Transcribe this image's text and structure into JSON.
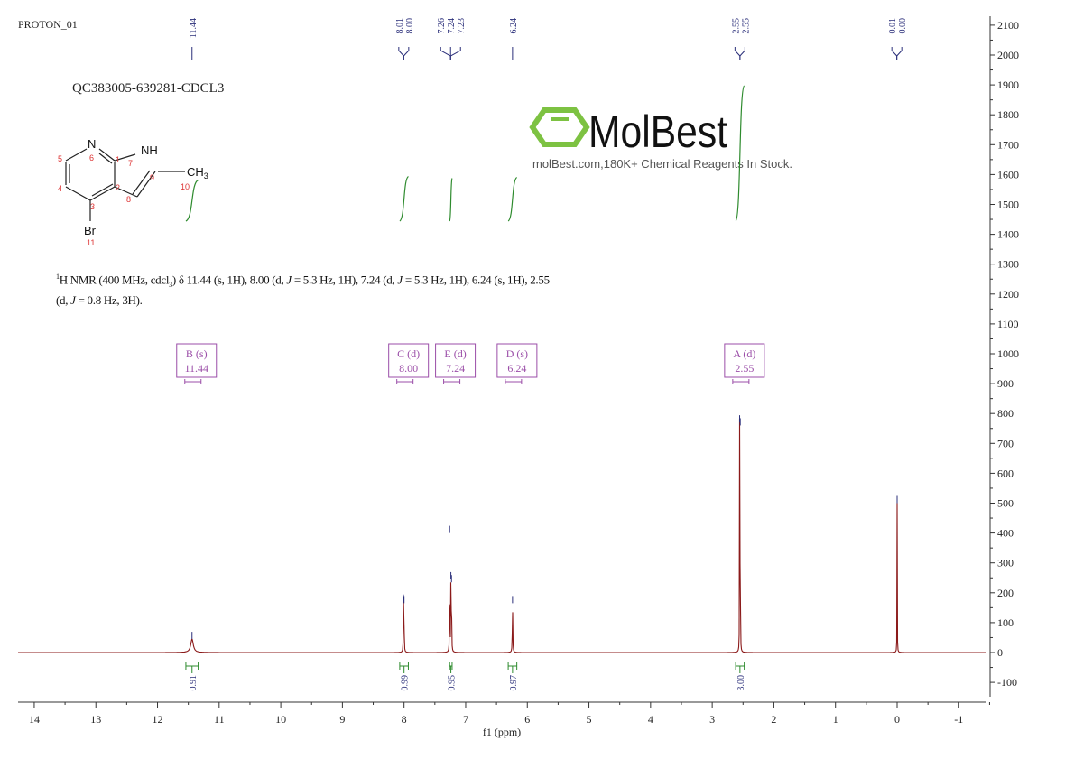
{
  "chart_data": {
    "type": "line",
    "title": "PROTON_01",
    "sample_name": "QC383005-639281-CDCL3",
    "xlabel": "f1 (ppm)",
    "ylabel": "",
    "xlim": [
      14.26,
      -1.43
    ],
    "ylim": [
      -170,
      2120
    ],
    "x_ticks": [
      14,
      13,
      12,
      11,
      10,
      9,
      8,
      7,
      6,
      5,
      4,
      3,
      2,
      1,
      0,
      -1
    ],
    "y_ticks": [
      2100,
      2000,
      1900,
      1800,
      1700,
      1600,
      1500,
      1400,
      1300,
      1200,
      1100,
      1000,
      900,
      800,
      700,
      600,
      500,
      400,
      300,
      200,
      100,
      0,
      -100
    ],
    "grid": false,
    "spectrum_color": "#8b1a1a",
    "peak_label_color": "#2b2f7a",
    "integral_color": "#2e8b2e",
    "multiplet_color": "#9b4ea8",
    "peaks": [
      {
        "ppm": 11.44,
        "height": 45,
        "width": 0.05
      },
      {
        "ppm": 8.01,
        "height": 170,
        "width": 0.006
      },
      {
        "ppm": 8.0,
        "height": 165,
        "width": 0.006
      },
      {
        "ppm": 7.26,
        "height": 400,
        "width": 0.005
      },
      {
        "ppm": 7.24,
        "height": 245,
        "width": 0.006
      },
      {
        "ppm": 7.23,
        "height": 235,
        "width": 0.006
      },
      {
        "ppm": 6.24,
        "height": 165,
        "width": 0.008
      },
      {
        "ppm": 2.555,
        "height": 770,
        "width": 0.004
      },
      {
        "ppm": 2.545,
        "height": 760,
        "width": 0.004
      },
      {
        "ppm": 0.0,
        "height": 500,
        "width": 0.004
      }
    ],
    "peak_label_groups": [
      {
        "ppm": 11.44,
        "labels": [
          "11.44"
        ]
      },
      {
        "ppm": 8.005,
        "labels": [
          "8.01",
          "8.00"
        ]
      },
      {
        "ppm": 7.245,
        "labels": [
          "7.26",
          "7.24",
          "7.23"
        ]
      },
      {
        "ppm": 6.24,
        "labels": [
          "6.24"
        ]
      },
      {
        "ppm": 2.55,
        "labels": [
          "2.55",
          "2.55"
        ]
      },
      {
        "ppm": 0.005,
        "labels": [
          "0.01",
          "0.00"
        ]
      }
    ],
    "multiplets": [
      {
        "label": "B (s)",
        "shift": "11.44",
        "ppm": 11.44
      },
      {
        "label": "C (d)",
        "shift": "8.00",
        "ppm": 8.0
      },
      {
        "label": "E (d)",
        "shift": "7.24",
        "ppm": 7.24
      },
      {
        "label": "D (s)",
        "shift": "6.24",
        "ppm": 6.24
      },
      {
        "label": "A (d)",
        "shift": "2.55",
        "ppm": 2.55
      }
    ],
    "integrals": [
      {
        "ppm": 11.44,
        "from": 11.54,
        "to": 11.34,
        "value": "0.91"
      },
      {
        "ppm": 8.0,
        "from": 8.07,
        "to": 7.93,
        "value": "0.99"
      },
      {
        "ppm": 7.24,
        "from": 7.26,
        "to": 7.22,
        "value": "0.95"
      },
      {
        "ppm": 6.24,
        "from": 6.31,
        "to": 6.17,
        "value": "0.97"
      },
      {
        "ppm": 2.55,
        "from": 2.62,
        "to": 2.48,
        "value": "3.00"
      }
    ]
  },
  "nmr_summary": {
    "sup": "1",
    "prefix": "H NMR (400 MHz, cdcl",
    "sub": "3",
    "p1": ") δ 11.44 (s, 1H), 8.00 (d, ",
    "j": "J",
    "p2": " = 5.3 Hz, 1H), 7.24 (d, ",
    "p3": " = 5.3 Hz, 1H), 6.24 (s, 1H), 2.55 (d, ",
    "p4": " = 0.8 Hz, 3H)."
  },
  "structure": {
    "atoms": {
      "n6": "N",
      "nh": "NH",
      "ch3": "CH",
      "ch3_sub": "3",
      "br": "Br"
    },
    "numbers": [
      "1",
      "2",
      "3",
      "4",
      "5",
      "6",
      "7",
      "8",
      "9",
      "10",
      "11"
    ]
  },
  "watermark": {
    "logo_text": "MolBest",
    "tagline": "molBest.com,180K+ Chemical Reagents In Stock.",
    "logo_color": "#7dc242"
  }
}
